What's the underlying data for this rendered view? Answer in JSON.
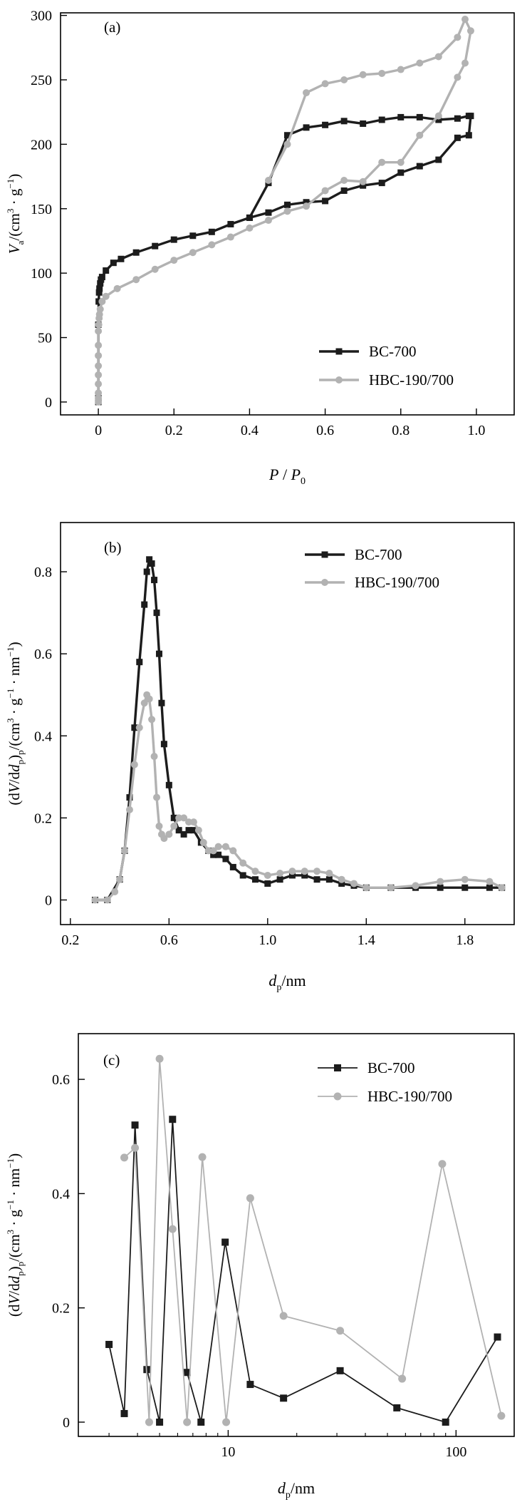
{
  "colors": {
    "bc": "#1c1c1c",
    "hbc": "#b2b2b2"
  },
  "chart_data": [
    {
      "panel": "(a)",
      "type": "line",
      "xlim": [
        -0.1,
        1.1
      ],
      "ylim": [
        -10,
        302
      ],
      "xticks": [
        0,
        0.2,
        0.4,
        0.6,
        0.8,
        1.0
      ],
      "xtick_labels": [
        "0",
        "0.2",
        "0.4",
        "0.6",
        "0.8",
        "1.0"
      ],
      "yticks": [
        0,
        50,
        100,
        150,
        200,
        250,
        300
      ],
      "ytick_labels": [
        "0",
        "50",
        "100",
        "150",
        "200",
        "250",
        "300"
      ],
      "xlabel": {
        "main": "P",
        "sep": " / ",
        "main2": "P",
        "sub": "0"
      },
      "ylabel": {
        "main": "V",
        "sub": "a",
        "rest": "/(cm",
        "sup1": "3",
        "mid": " · g",
        "sup2": "−1",
        "close": ")"
      },
      "legend_position": "bottom-right",
      "series": [
        {
          "name": "BC-700",
          "marker": "square",
          "x": [
            0.0,
            0.0,
            0.0,
            0.001,
            0.002,
            0.003,
            0.005,
            0.007,
            0.01,
            0.02,
            0.04,
            0.06,
            0.1,
            0.15,
            0.2,
            0.25,
            0.3,
            0.35,
            0.4,
            0.45,
            0.5,
            0.55,
            0.6,
            0.65,
            0.7,
            0.75,
            0.8,
            0.85,
            0.9,
            0.95,
            0.98,
            0.985,
            0.98,
            0.95,
            0.9,
            0.85,
            0.8,
            0.75,
            0.7,
            0.65,
            0.6,
            0.55,
            0.5,
            0.45,
            0.4
          ],
          "y": [
            0,
            3,
            60,
            78,
            85,
            88,
            92,
            95,
            97,
            102,
            108,
            111,
            116,
            121,
            126,
            129,
            132,
            138,
            143,
            170,
            207,
            213,
            215,
            218,
            216,
            219,
            221,
            221,
            219,
            220,
            222,
            222,
            207,
            205,
            188,
            183,
            178,
            170,
            168,
            164,
            156,
            155,
            153,
            147,
            143
          ]
        },
        {
          "name": "HBC-190/700",
          "marker": "circle",
          "x": [
            0.0,
            0.0,
            0.0,
            0.0,
            0.0,
            0.0,
            0.0,
            0.0,
            0.0,
            0.001,
            0.002,
            0.003,
            0.005,
            0.01,
            0.02,
            0.05,
            0.1,
            0.15,
            0.2,
            0.25,
            0.3,
            0.35,
            0.4,
            0.45,
            0.5,
            0.55,
            0.6,
            0.65,
            0.7,
            0.75,
            0.8,
            0.85,
            0.9,
            0.95,
            0.97,
            0.985,
            0.97,
            0.95,
            0.9,
            0.85,
            0.8,
            0.75,
            0.7,
            0.65,
            0.6,
            0.55,
            0.5,
            0.45
          ],
          "y": [
            0,
            3,
            7,
            14,
            21,
            28,
            36,
            44,
            55,
            60,
            65,
            68,
            72,
            78,
            82,
            88,
            95,
            103,
            110,
            116,
            122,
            128,
            135,
            141,
            148,
            152,
            164,
            172,
            171,
            186,
            186,
            207,
            222,
            252,
            263,
            288,
            297,
            283,
            268,
            263,
            258,
            255,
            254,
            250,
            247,
            240,
            200,
            172
          ]
        }
      ]
    },
    {
      "panel": "(b)",
      "type": "line",
      "xlim": [
        0.16,
        2.0
      ],
      "ylim": [
        -0.06,
        0.92
      ],
      "xticks": [
        0.2,
        0.6,
        1.0,
        1.4,
        1.8
      ],
      "xtick_labels": [
        "0.2",
        "0.6",
        "1.0",
        "1.4",
        "1.8"
      ],
      "yticks": [
        0,
        0.2,
        0.4,
        0.6,
        0.8
      ],
      "ytick_labels": [
        "0",
        "0.2",
        "0.4",
        "0.6",
        "0.8"
      ],
      "xlabel": {
        "main": "d",
        "sub": "p",
        "rest": "/nm"
      },
      "ylabel": {
        "lead": "(d",
        "v": "V",
        "mid": "/d",
        "d": "d",
        "sub1": "p",
        "close": ")",
        "sub2": "p",
        "rest": "/(cm",
        "sup1": "3",
        "mid2": " · g",
        "sup2": "−1",
        "mid3": " · nm",
        "sup3": "−1",
        "close2": ")"
      },
      "legend_position": "top-right",
      "series": [
        {
          "name": "BC-700",
          "marker": "square",
          "x": [
            0.3,
            0.35,
            0.4,
            0.42,
            0.44,
            0.46,
            0.48,
            0.5,
            0.51,
            0.52,
            0.53,
            0.54,
            0.55,
            0.56,
            0.57,
            0.58,
            0.6,
            0.62,
            0.64,
            0.66,
            0.68,
            0.7,
            0.73,
            0.76,
            0.78,
            0.8,
            0.83,
            0.86,
            0.9,
            0.95,
            1.0,
            1.05,
            1.1,
            1.15,
            1.2,
            1.25,
            1.3,
            1.35,
            1.4,
            1.5,
            1.6,
            1.7,
            1.8,
            1.9,
            1.95
          ],
          "y": [
            0.0,
            0.0,
            0.05,
            0.12,
            0.25,
            0.42,
            0.58,
            0.72,
            0.8,
            0.83,
            0.82,
            0.78,
            0.7,
            0.6,
            0.48,
            0.38,
            0.28,
            0.2,
            0.17,
            0.16,
            0.17,
            0.17,
            0.14,
            0.12,
            0.11,
            0.11,
            0.1,
            0.08,
            0.06,
            0.05,
            0.04,
            0.05,
            0.06,
            0.06,
            0.05,
            0.05,
            0.04,
            0.035,
            0.03,
            0.03,
            0.03,
            0.03,
            0.03,
            0.03,
            0.03
          ]
        },
        {
          "name": "HBC-190/700",
          "marker": "circle",
          "x": [
            0.3,
            0.35,
            0.38,
            0.4,
            0.42,
            0.44,
            0.46,
            0.48,
            0.5,
            0.51,
            0.52,
            0.53,
            0.54,
            0.55,
            0.56,
            0.57,
            0.58,
            0.6,
            0.62,
            0.64,
            0.66,
            0.68,
            0.7,
            0.72,
            0.74,
            0.76,
            0.78,
            0.8,
            0.83,
            0.86,
            0.9,
            0.95,
            1.0,
            1.05,
            1.1,
            1.15,
            1.2,
            1.25,
            1.3,
            1.35,
            1.4,
            1.5,
            1.6,
            1.7,
            1.8,
            1.9,
            1.95
          ],
          "y": [
            0.0,
            0.0,
            0.02,
            0.05,
            0.12,
            0.22,
            0.33,
            0.42,
            0.48,
            0.5,
            0.49,
            0.44,
            0.35,
            0.25,
            0.18,
            0.16,
            0.15,
            0.16,
            0.18,
            0.2,
            0.2,
            0.19,
            0.19,
            0.17,
            0.14,
            0.12,
            0.12,
            0.13,
            0.13,
            0.12,
            0.09,
            0.07,
            0.06,
            0.065,
            0.07,
            0.07,
            0.07,
            0.065,
            0.05,
            0.04,
            0.03,
            0.03,
            0.035,
            0.045,
            0.05,
            0.045,
            0.03
          ]
        }
      ]
    },
    {
      "panel": "(c)",
      "type": "line",
      "xscale": "log",
      "xlim": [
        2.2,
        180
      ],
      "ylim": [
        -0.025,
        0.68
      ],
      "xticks": [
        10,
        100
      ],
      "xtick_labels": [
        "10",
        "100"
      ],
      "yticks": [
        0,
        0.2,
        0.4,
        0.6
      ],
      "ytick_labels": [
        "0",
        "0.2",
        "0.4",
        "0.6"
      ],
      "xlabel": {
        "main": "d",
        "sub": "p",
        "rest": "/nm"
      },
      "ylabel": {
        "lead": "(d",
        "v": "V",
        "mid": "/d",
        "d": "d",
        "sub1": "p",
        "close": ")",
        "sub2": "p",
        "rest": "/(cm",
        "sup1": "3",
        "mid2": " · g",
        "sup2": "−1",
        "mid3": " · nm",
        "sup3": "−1",
        "close2": ")"
      },
      "legend_position": "top-right",
      "series": [
        {
          "name": "BC-700",
          "marker": "square",
          "x": [
            3.0,
            3.5,
            3.9,
            4.4,
            5.0,
            5.7,
            6.6,
            7.6,
            9.7,
            12.5,
            17.5,
            31,
            55,
            90,
            152
          ],
          "y": [
            0.136,
            0.015,
            0.52,
            0.092,
            0.0,
            0.53,
            0.087,
            0.0,
            0.315,
            0.066,
            0.042,
            0.09,
            0.025,
            0.0,
            0.149
          ]
        },
        {
          "name": "HBC-190/700",
          "marker": "circle",
          "x": [
            3.5,
            3.9,
            4.5,
            5.0,
            5.7,
            6.6,
            7.7,
            9.8,
            12.5,
            17.5,
            31,
            58,
            87,
            158
          ],
          "y": [
            0.463,
            0.48,
            0.0,
            0.636,
            0.338,
            0.0,
            0.464,
            0.0,
            0.392,
            0.186,
            0.16,
            0.076,
            0.452,
            0.011
          ]
        }
      ]
    }
  ]
}
